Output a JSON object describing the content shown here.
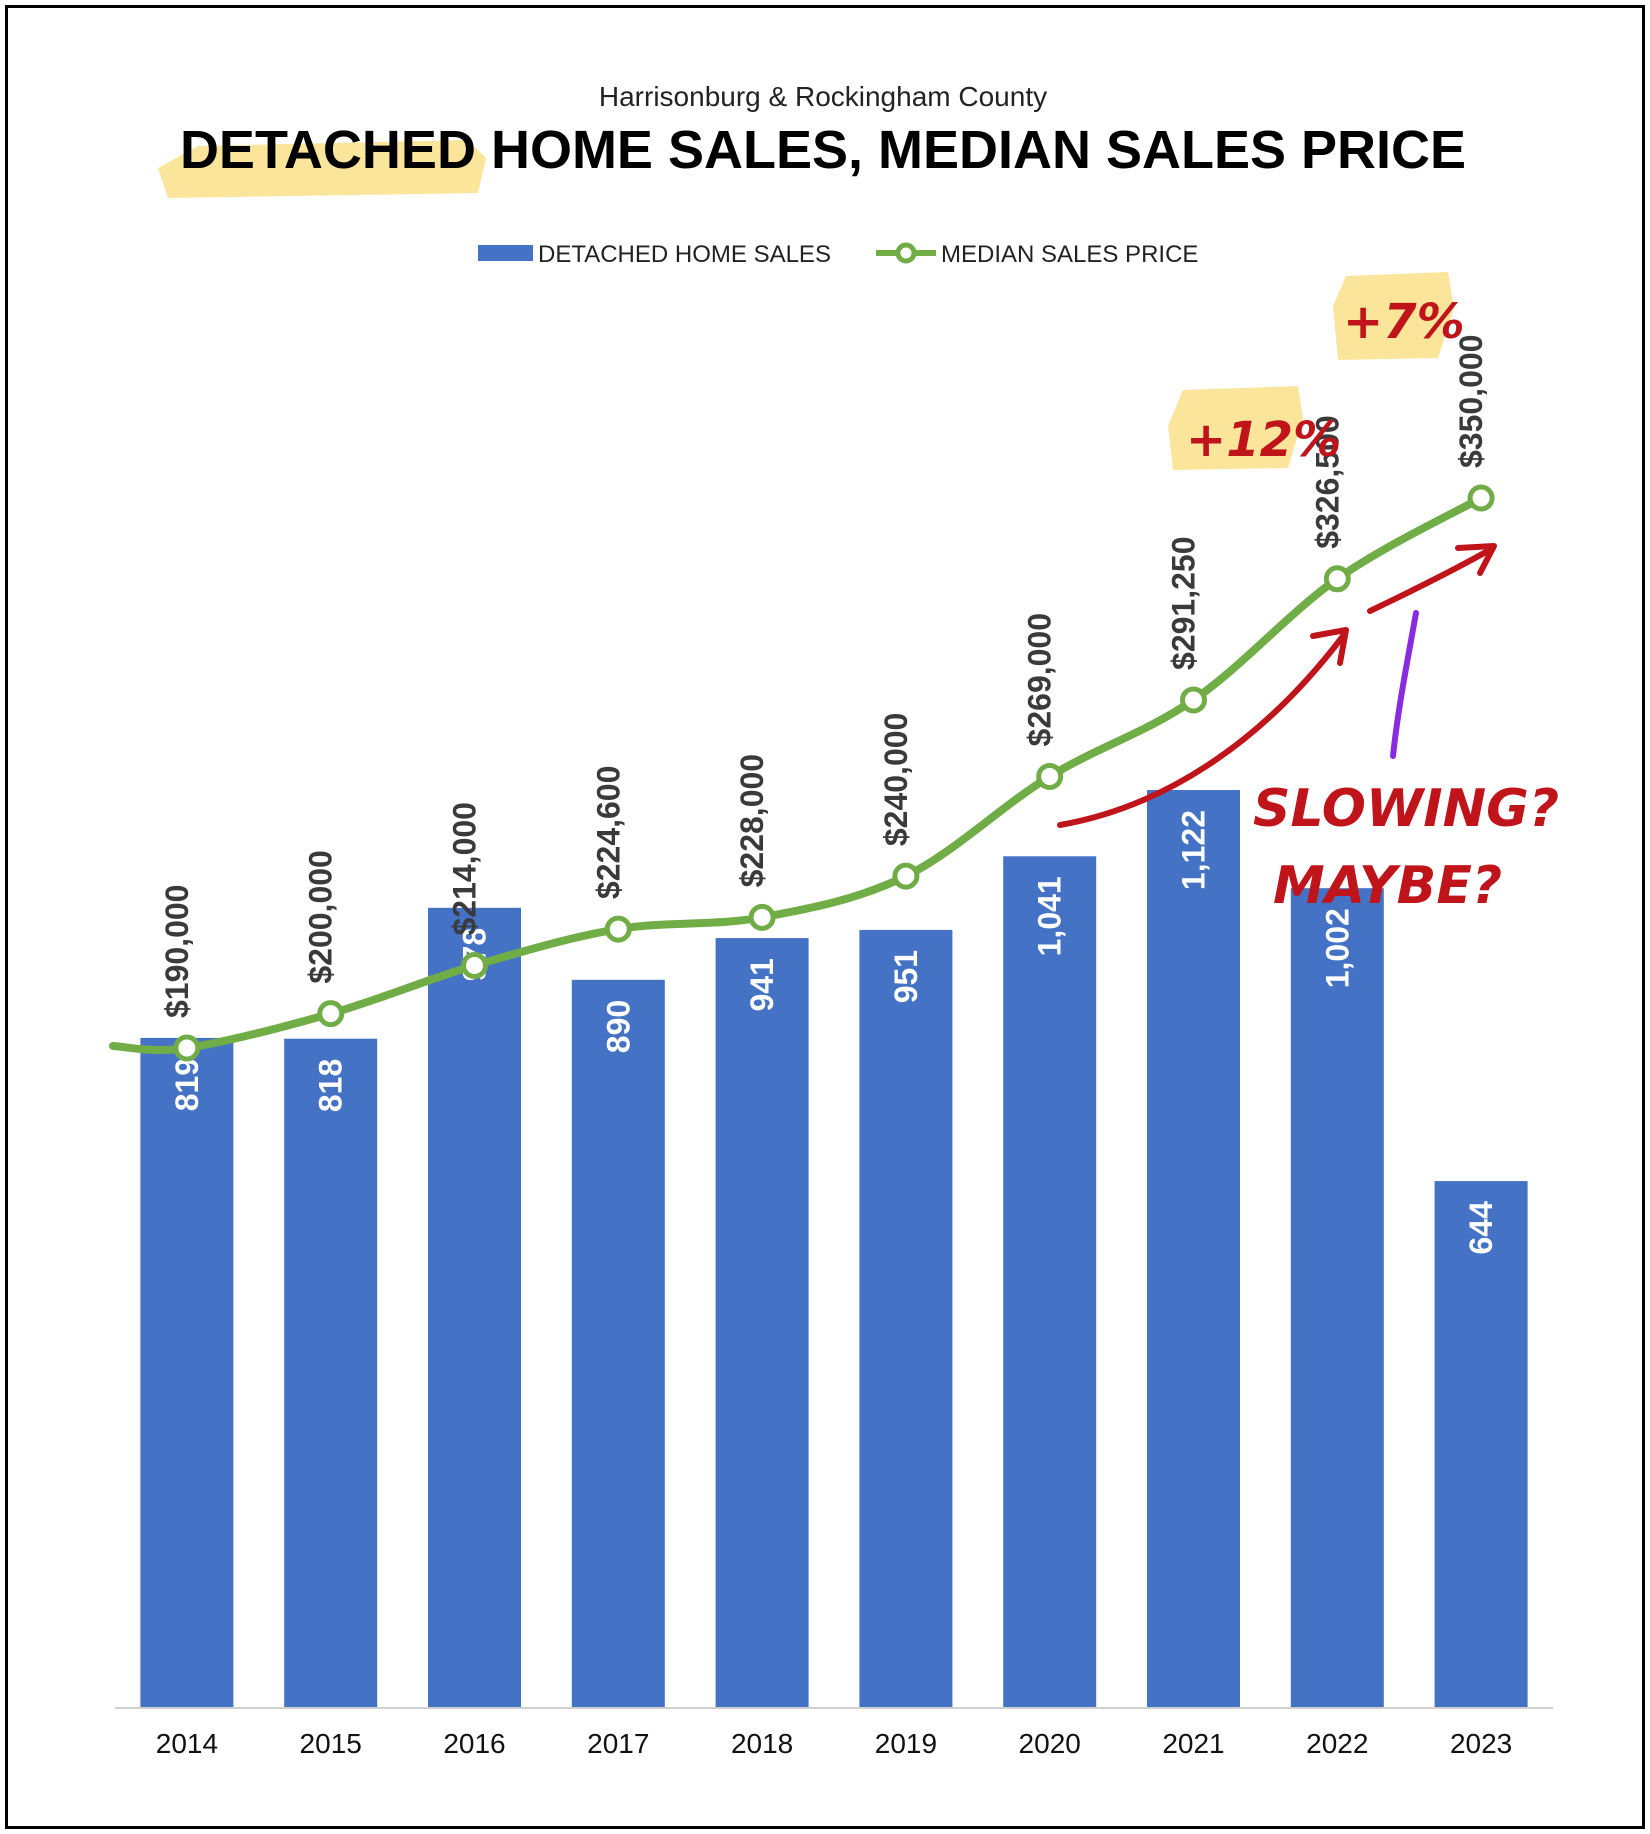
{
  "colors": {
    "bar": "#4472c4",
    "line": "#70ad47",
    "highlight": "#fbe59a",
    "annotation_red": "#c0141b",
    "annotation_purple": "#8a2be2"
  },
  "chart_data": {
    "type": "bar",
    "subtitle": "Harrisonburg & Rockingham County",
    "title_highlight": "DETACHED",
    "title_rest": " HOME SALES, MEDIAN SALES PRICE",
    "categories": [
      "2014",
      "2015",
      "2016",
      "2017",
      "2018",
      "2019",
      "2020",
      "2021",
      "2022",
      "2023"
    ],
    "series": [
      {
        "name": "DETACHED HOME SALES",
        "type": "bar",
        "axis": "primary",
        "values": [
          819,
          818,
          978,
          890,
          941,
          951,
          1041,
          1122,
          1002,
          644
        ],
        "labels": [
          "819",
          "818",
          "978",
          "890",
          "941",
          "951",
          "1,041",
          "1,122",
          "1,002",
          "644"
        ]
      },
      {
        "name": "MEDIAN SALES PRICE",
        "type": "line",
        "axis": "secondary",
        "values": [
          190000,
          200000,
          214000,
          224600,
          228000,
          240000,
          269000,
          291250,
          326500,
          350000
        ],
        "labels": [
          "$190,000",
          "$200,000",
          "$214,000",
          "$224,600",
          "$228,000",
          "$240,000",
          "$269,000",
          "$291,250",
          "$326,500",
          "$350,000"
        ]
      }
    ],
    "legend_position": "top-center",
    "grid": false,
    "annotations": {
      "pct_2022": "+12%",
      "pct_2023": "+7%",
      "note_line1": "SLOWING?",
      "note_line2": "MAYBE?"
    }
  }
}
